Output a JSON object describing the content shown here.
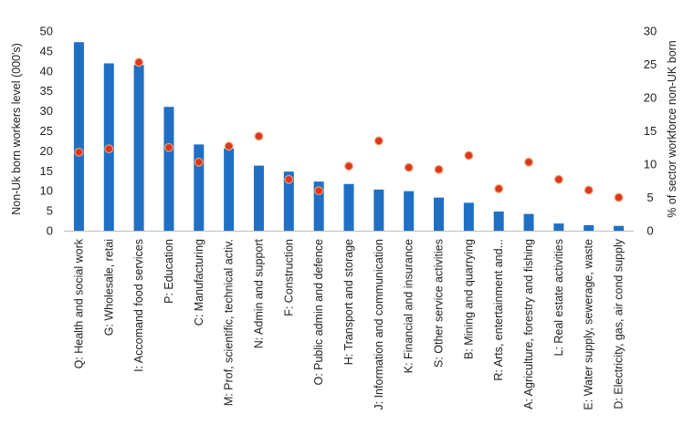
{
  "chart_data": {
    "type": "bar",
    "categories": [
      "Q: Health and social work",
      "G: Wholesale, retai",
      "I: Accomand food services",
      "P: Education",
      "C: Manufacturing",
      "M: Prof, scientific, technical activ.",
      "N: Admin and support",
      "F: Construction",
      "O: Public admin and defence",
      "H: Transport and storage",
      "J: Information and communication",
      "K: Financial and insurance",
      "S: Other service activities",
      "B: Mining and quarrying",
      "R: Arts, entertainment and...",
      "A: Agriculture, forestry and fishing",
      "L: Real estate activities",
      "E: Water supply, sewerage, waste",
      "D: Electricity, gas, air cond supply"
    ],
    "series": [
      {
        "axis": "left",
        "type": "bar",
        "color": "#1f6fc5",
        "values": [
          47.2,
          41.9,
          41.5,
          31.0,
          21.6,
          20.6,
          16.3,
          14.8,
          12.3,
          11.7,
          10.3,
          9.9,
          8.3,
          7.0,
          4.8,
          4.2,
          1.8,
          1.4,
          1.2
        ]
      },
      {
        "axis": "right",
        "type": "scatter",
        "color": "#d9381e",
        "values": [
          11.8,
          12.3,
          25.3,
          12.5,
          10.3,
          12.7,
          14.2,
          7.7,
          6.0,
          9.7,
          13.5,
          9.5,
          9.2,
          11.3,
          6.3,
          10.3,
          7.7,
          6.1,
          5.0
        ]
      }
    ],
    "ylabel": "Non-Uk born workers level (000's)",
    "y2label": "% of sector workforce non-UK born",
    "ylim": [
      0,
      50
    ],
    "y2lim": [
      0,
      30
    ],
    "yticks": [
      "0",
      "5",
      "10",
      "15",
      "20",
      "25",
      "30",
      "35",
      "40",
      "45",
      "50"
    ],
    "y2ticks": [
      "0",
      "5",
      "10",
      "15",
      "20",
      "25",
      "30"
    ],
    "grid": false,
    "legend": "none"
  }
}
